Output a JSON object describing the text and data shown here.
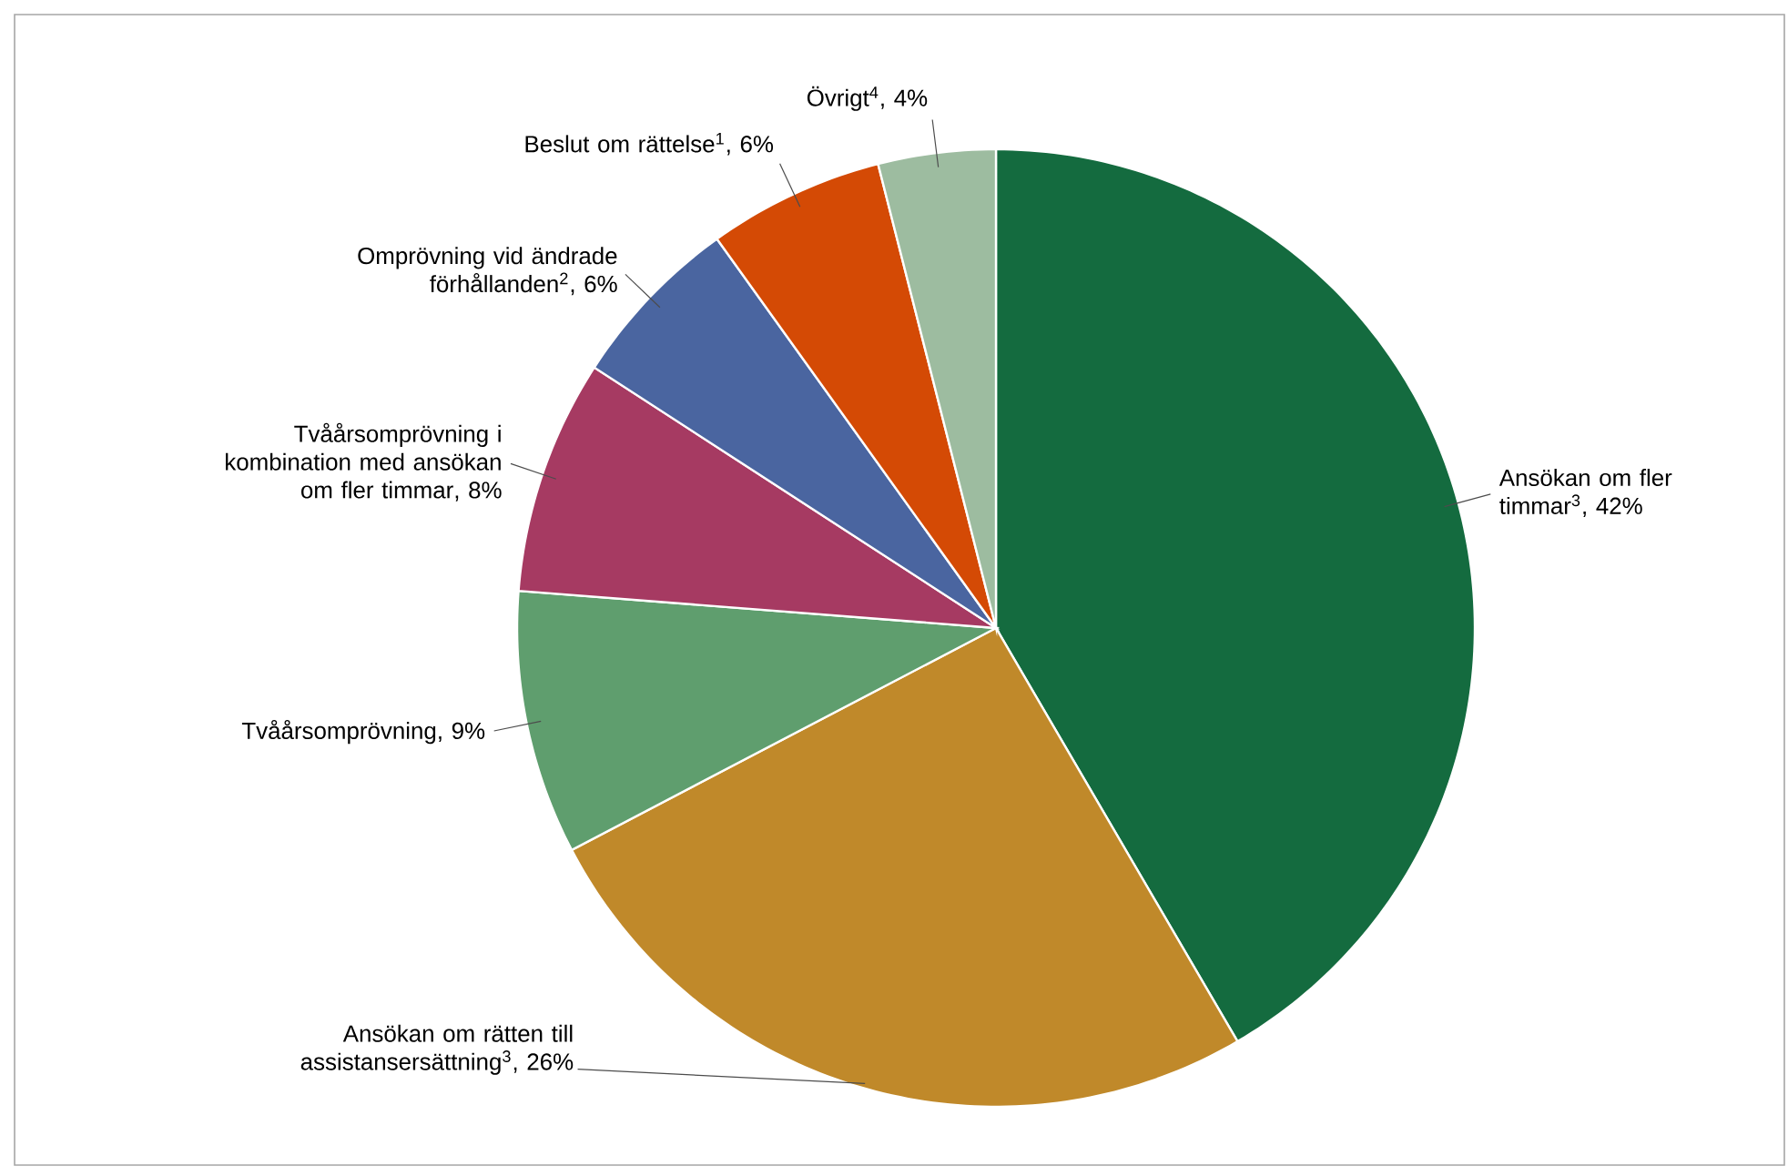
{
  "chart_data": {
    "type": "pie",
    "categories": [
      "Ansökan om fler timmar$^{3}$",
      "Ansökan om rätten till assistansersättning$^{3}$",
      "Tvåårsomprövning",
      "Tvåårsomprövning i kombination med ansökan om fler timmar",
      "Omprövning vid ändrade förhållanden$^{2}$",
      "Beslut om rättelse$^{1}$",
      "Övrigt$^{4}$"
    ],
    "values": [
      42,
      26,
      9,
      8,
      6,
      6,
      4
    ],
    "value_labels": [
      ", 42%",
      ", 26%",
      ", 9%",
      ", 8%",
      ", 6%",
      ", 6%",
      ", 4%"
    ],
    "colors": [
      "#146b3f",
      "#c0892a",
      "#5f9e6e",
      "#a63a62",
      "#4a65a0",
      "#d44a05",
      "#9dbca0"
    ]
  }
}
